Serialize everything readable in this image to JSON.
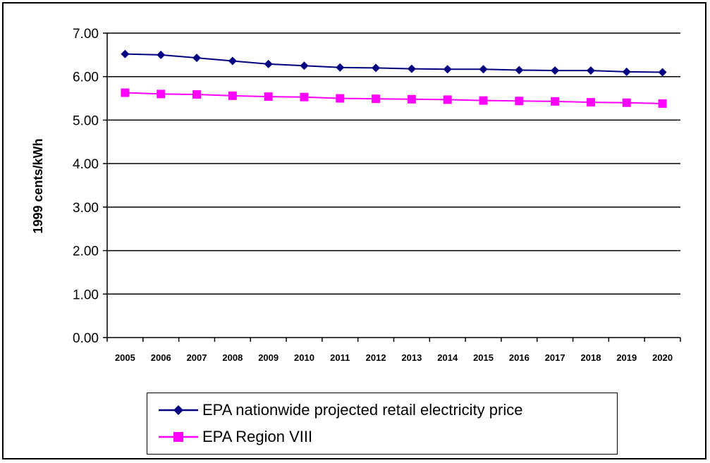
{
  "chart_data": {
    "type": "line",
    "title": "",
    "xlabel": "",
    "ylabel": "1999 cents/kWh",
    "ylim": [
      0,
      7
    ],
    "yticks": [
      "0.00",
      "1.00",
      "2.00",
      "3.00",
      "4.00",
      "5.00",
      "6.00",
      "7.00"
    ],
    "categories": [
      "2005",
      "2006",
      "2007",
      "2008",
      "2009",
      "2010",
      "2011",
      "2012",
      "2013",
      "2014",
      "2015",
      "2016",
      "2017",
      "2018",
      "2019",
      "2020"
    ],
    "grid": "horizontal",
    "legend_position": "bottom",
    "series": [
      {
        "name": "EPA nationwide projected retail electricity price",
        "color": "#000080",
        "marker": "diamond",
        "values": [
          6.52,
          6.5,
          6.43,
          6.36,
          6.29,
          6.25,
          6.21,
          6.2,
          6.18,
          6.17,
          6.17,
          6.15,
          6.14,
          6.14,
          6.11,
          6.1
        ]
      },
      {
        "name": "EPA Region VIII",
        "color": "#ff00ff",
        "marker": "square",
        "values": [
          5.63,
          5.6,
          5.59,
          5.56,
          5.54,
          5.53,
          5.5,
          5.49,
          5.48,
          5.47,
          5.45,
          5.44,
          5.43,
          5.41,
          5.4,
          5.38
        ]
      }
    ]
  }
}
